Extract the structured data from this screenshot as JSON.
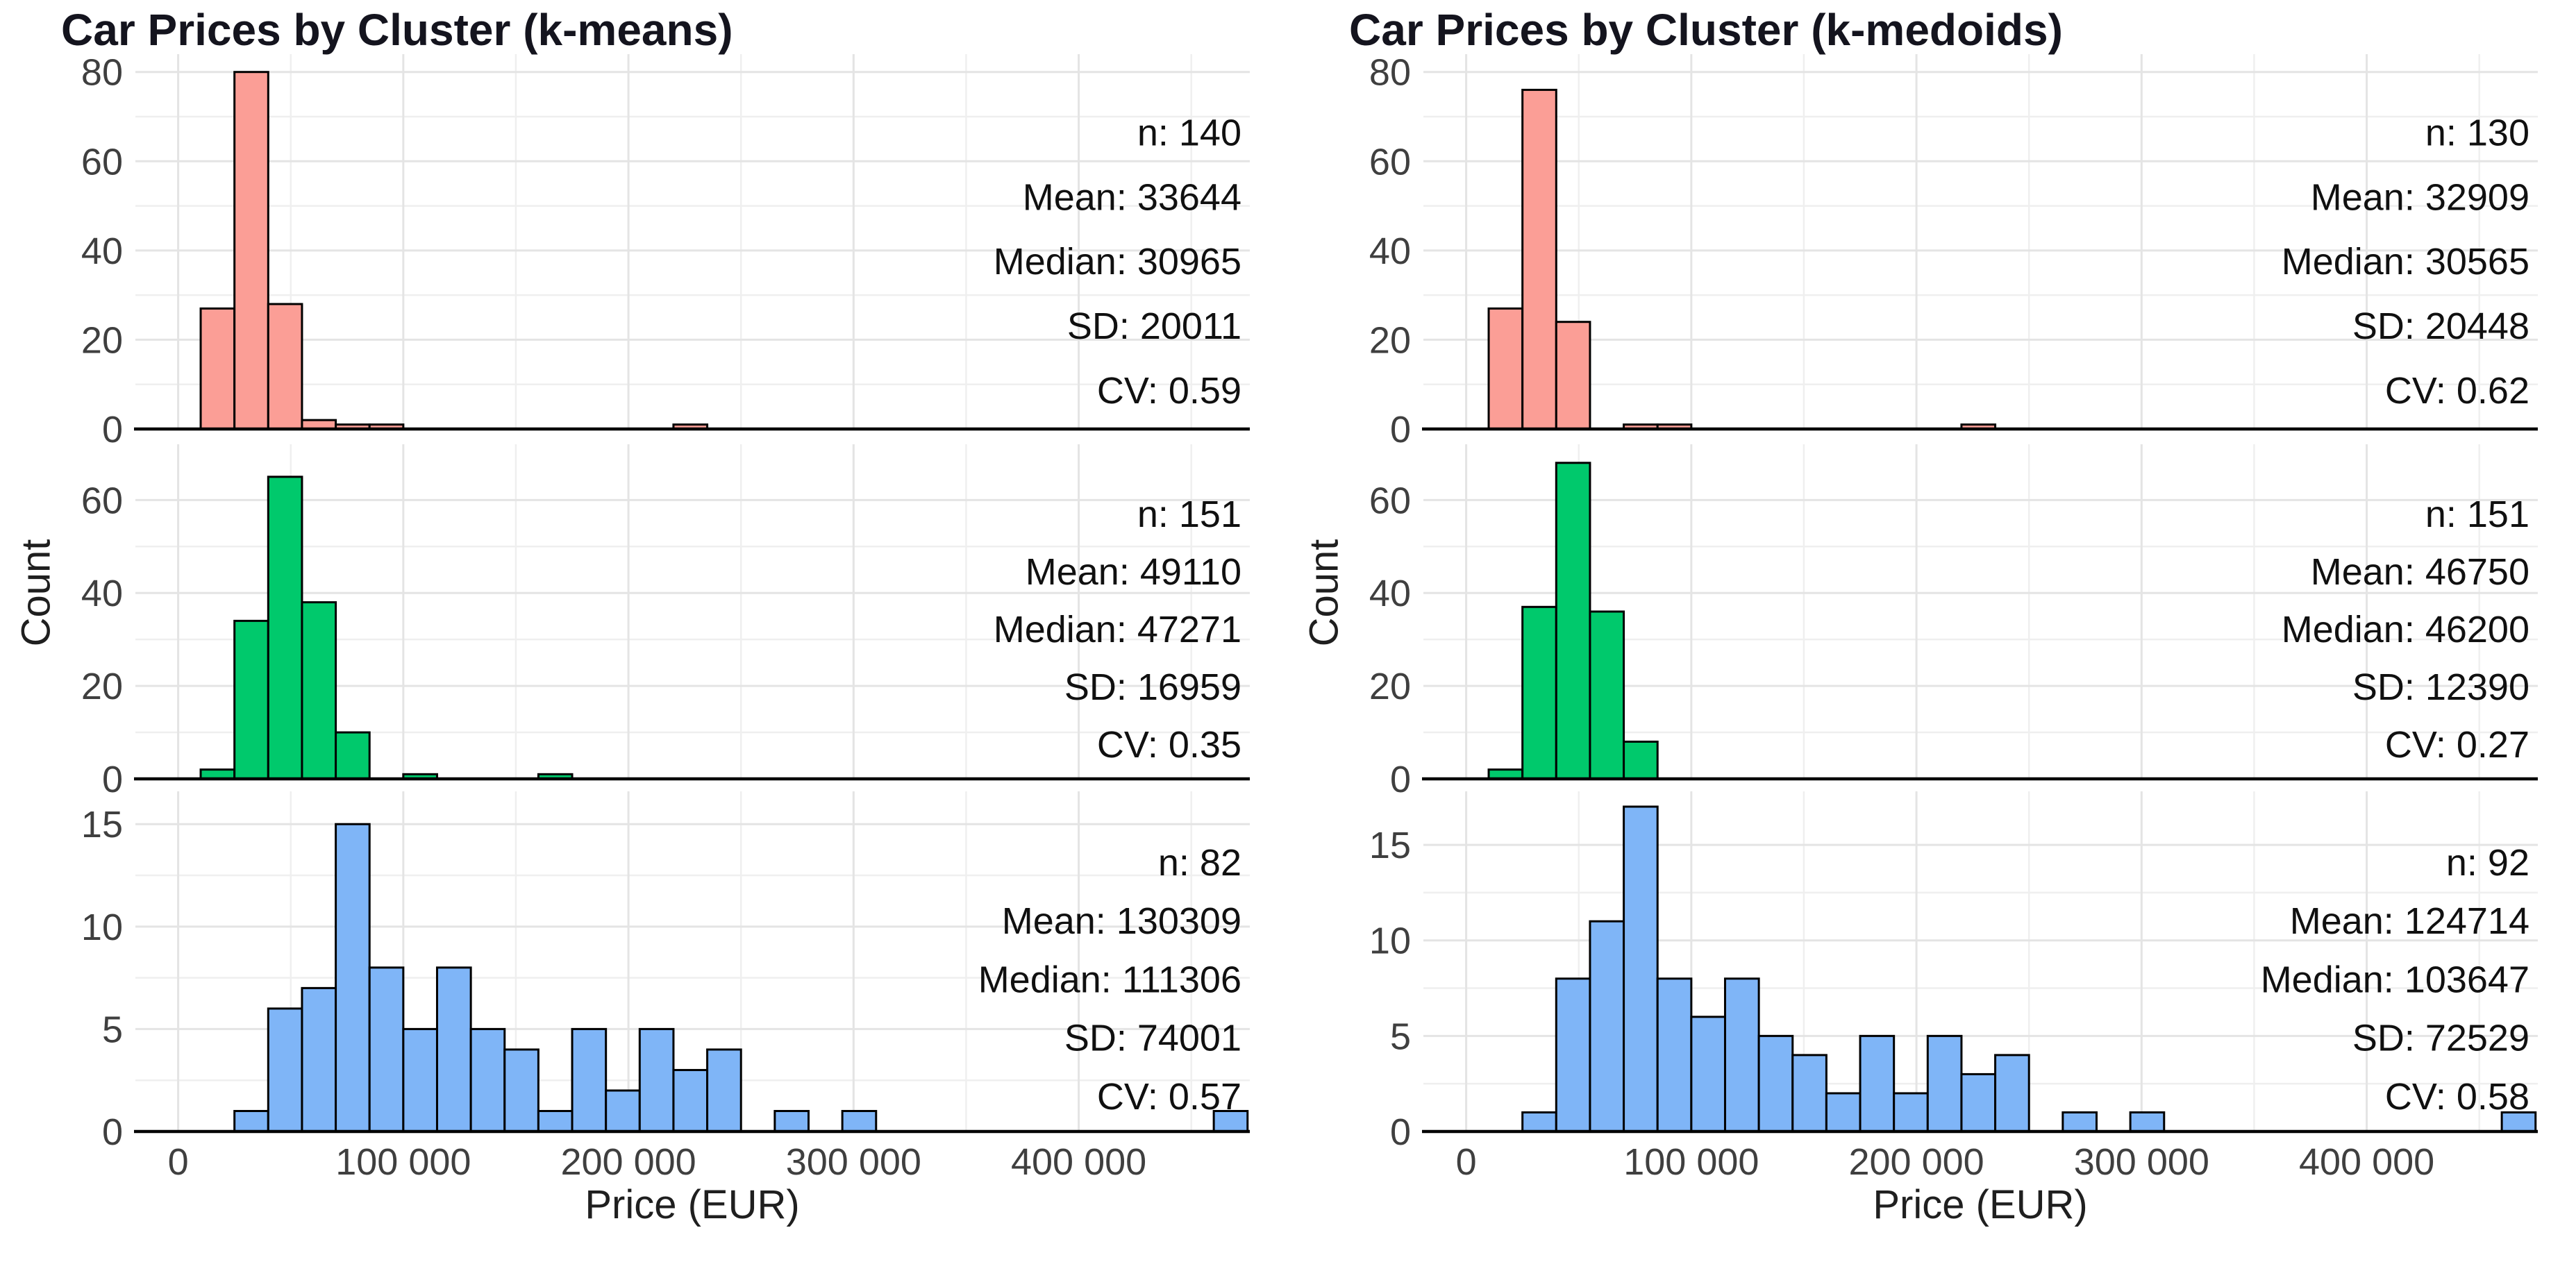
{
  "chart_data": [
    {
      "type": "bar",
      "subtype": "faceted-histogram",
      "title": "Car Prices by Cluster (k-means)",
      "xlabel": "Price (EUR)",
      "ylabel": "Count",
      "grid": true,
      "legend": "none",
      "binwidth": 15000,
      "xlim": [
        -19000,
        476000
      ],
      "x_ticks": [
        0,
        100000,
        200000,
        300000,
        400000
      ],
      "x_tick_labels": [
        "0",
        "100 000",
        "200 000",
        "300 000",
        "400 000"
      ],
      "x_minor_ticks": [
        50000,
        150000,
        250000,
        350000,
        450000
      ],
      "panels": [
        {
          "cluster": 1,
          "color": "#FB9E96",
          "ylim": [
            0,
            84
          ],
          "y_ticks": [
            0,
            20,
            40,
            60,
            80
          ],
          "y_minor_ticks": [
            10,
            30,
            50,
            70
          ],
          "bins": [
            [
              10000,
              27
            ],
            [
              25000,
              80
            ],
            [
              40000,
              28
            ],
            [
              55000,
              2
            ],
            [
              70000,
              1
            ],
            [
              85000,
              1
            ],
            [
              220000,
              1
            ]
          ],
          "stats": [
            "n: 140",
            "Mean: 33644",
            "Median: 30965",
            "SD: 20011",
            "CV: 0.59"
          ]
        },
        {
          "cluster": 2,
          "color": "#00C96C",
          "ylim": [
            0,
            72
          ],
          "y_ticks": [
            0,
            20,
            40,
            60
          ],
          "y_minor_ticks": [
            10,
            30,
            50
          ],
          "bins": [
            [
              10000,
              2
            ],
            [
              25000,
              34
            ],
            [
              40000,
              65
            ],
            [
              55000,
              38
            ],
            [
              70000,
              10
            ],
            [
              100000,
              1
            ],
            [
              160000,
              1
            ]
          ],
          "stats": [
            "n: 151",
            "Mean: 49110",
            "Median: 47271",
            "SD: 16959",
            "CV: 0.35"
          ]
        },
        {
          "cluster": 3,
          "color": "#7FB5F7",
          "ylim": [
            0,
            16.6
          ],
          "y_ticks": [
            0,
            5,
            10,
            15
          ],
          "y_minor_ticks": [
            2.5,
            7.5,
            12.5
          ],
          "bins": [
            [
              25000,
              1
            ],
            [
              40000,
              6
            ],
            [
              55000,
              7
            ],
            [
              70000,
              15
            ],
            [
              85000,
              8
            ],
            [
              100000,
              5
            ],
            [
              115000,
              8
            ],
            [
              130000,
              5
            ],
            [
              145000,
              4
            ],
            [
              160000,
              1
            ],
            [
              175000,
              5
            ],
            [
              190000,
              2
            ],
            [
              205000,
              5
            ],
            [
              220000,
              3
            ],
            [
              235000,
              4
            ],
            [
              265000,
              1
            ],
            [
              295000,
              1
            ],
            [
              460000,
              1
            ]
          ],
          "stats": [
            "n: 82",
            "Mean: 130309",
            "Median: 111306",
            "SD: 74001",
            "CV: 0.57"
          ]
        }
      ]
    },
    {
      "type": "bar",
      "subtype": "faceted-histogram",
      "title": "Car Prices by Cluster (k-medoids)",
      "xlabel": "Price (EUR)",
      "ylabel": "Count",
      "grid": true,
      "legend": "none",
      "binwidth": 15000,
      "xlim": [
        -19000,
        476000
      ],
      "x_ticks": [
        0,
        100000,
        200000,
        300000,
        400000
      ],
      "x_tick_labels": [
        "0",
        "100 000",
        "200 000",
        "300 000",
        "400 000"
      ],
      "x_minor_ticks": [
        50000,
        150000,
        250000,
        350000,
        450000
      ],
      "panels": [
        {
          "cluster": 1,
          "color": "#FB9E96",
          "ylim": [
            0,
            84
          ],
          "y_ticks": [
            0,
            20,
            40,
            60,
            80
          ],
          "y_minor_ticks": [
            10,
            30,
            50,
            70
          ],
          "bins": [
            [
              10000,
              27
            ],
            [
              25000,
              76
            ],
            [
              40000,
              24
            ],
            [
              70000,
              1
            ],
            [
              85000,
              1
            ],
            [
              220000,
              1
            ]
          ],
          "stats": [
            "n: 130",
            "Mean: 32909",
            "Median: 30565",
            "SD: 20448",
            "CV: 0.62"
          ]
        },
        {
          "cluster": 2,
          "color": "#00C96C",
          "ylim": [
            0,
            72
          ],
          "y_ticks": [
            0,
            20,
            40,
            60
          ],
          "y_minor_ticks": [
            10,
            30,
            50
          ],
          "bins": [
            [
              10000,
              2
            ],
            [
              25000,
              37
            ],
            [
              40000,
              68
            ],
            [
              55000,
              36
            ],
            [
              70000,
              8
            ]
          ],
          "stats": [
            "n: 151",
            "Mean: 46750",
            "Median: 46200",
            "SD: 12390",
            "CV: 0.27"
          ]
        },
        {
          "cluster": 3,
          "color": "#7FB5F7",
          "ylim": [
            0,
            17.8
          ],
          "y_ticks": [
            0,
            5,
            10,
            15
          ],
          "y_minor_ticks": [
            2.5,
            7.5,
            12.5
          ],
          "bins": [
            [
              25000,
              1
            ],
            [
              40000,
              8
            ],
            [
              55000,
              11
            ],
            [
              70000,
              17
            ],
            [
              85000,
              8
            ],
            [
              100000,
              6
            ],
            [
              115000,
              8
            ],
            [
              130000,
              5
            ],
            [
              145000,
              4
            ],
            [
              160000,
              2
            ],
            [
              175000,
              5
            ],
            [
              190000,
              2
            ],
            [
              205000,
              5
            ],
            [
              220000,
              3
            ],
            [
              235000,
              4
            ],
            [
              265000,
              1
            ],
            [
              295000,
              1
            ],
            [
              460000,
              1
            ]
          ],
          "stats": [
            "n: 92",
            "Mean: 124714",
            "Median: 103647",
            "SD: 72529",
            "CV: 0.58"
          ]
        }
      ]
    }
  ],
  "style": {
    "bar_stroke_color": "#000000",
    "axis_line_color": "#000000",
    "major_gridline_color": "#E4E4E4",
    "minor_gridline_color": "#EFEFEF",
    "tick_label_color": "#3f3f3f",
    "stats_text_color": "#101010",
    "title_color": "#14141e",
    "background": "#ffffff"
  }
}
